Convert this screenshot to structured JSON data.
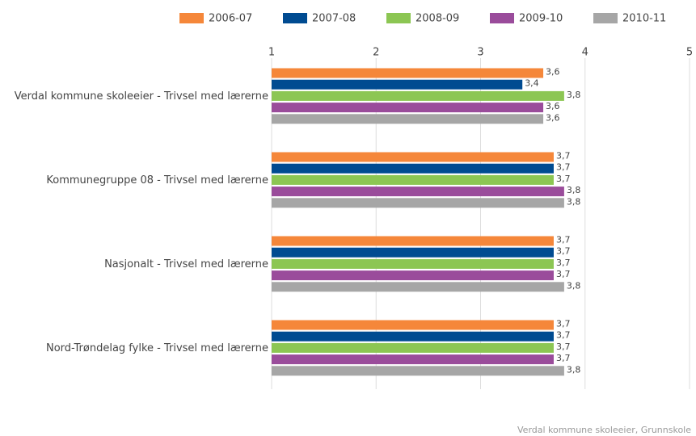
{
  "chart_data": {
    "type": "bar",
    "orientation": "horizontal",
    "categories": [
      "Verdal kommune skoleeier - Trivsel med lærerne",
      "Kommunegruppe 08 - Trivsel med lærerne",
      "Nasjonalt - Trivsel med lærerne",
      "Nord-Trøndelag fylke - Trivsel med lærerne"
    ],
    "series": [
      {
        "name": "2006-07",
        "color": "#f5873a",
        "values": [
          3.6,
          3.7,
          3.7,
          3.7
        ],
        "value_labels": [
          "3,6",
          "3,7",
          "3,7",
          "3,7"
        ]
      },
      {
        "name": "2007-08",
        "color": "#004b91",
        "values": [
          3.4,
          3.7,
          3.7,
          3.7
        ],
        "value_labels": [
          "3,4",
          "3,7",
          "3,7",
          "3,7"
        ]
      },
      {
        "name": "2008-09",
        "color": "#8cc653",
        "values": [
          3.8,
          3.7,
          3.7,
          3.7
        ],
        "value_labels": [
          "3,8",
          "3,7",
          "3,7",
          "3,7"
        ]
      },
      {
        "name": "2009-10",
        "color": "#9a4c9b",
        "values": [
          3.6,
          3.8,
          3.7,
          3.7
        ],
        "value_labels": [
          "3,6",
          "3,8",
          "3,7",
          "3,7"
        ]
      },
      {
        "name": "2010-11",
        "color": "#a6a6a6",
        "values": [
          3.6,
          3.8,
          3.8,
          3.8
        ],
        "value_labels": [
          "3,6",
          "3,8",
          "3,8",
          "3,8"
        ]
      }
    ],
    "xlim": [
      1,
      5
    ],
    "xticks": [
      1,
      2,
      3,
      4,
      5
    ],
    "grid": true,
    "legend": "top",
    "footer": "Verdal kommune skoleeier, Grunnskole"
  }
}
